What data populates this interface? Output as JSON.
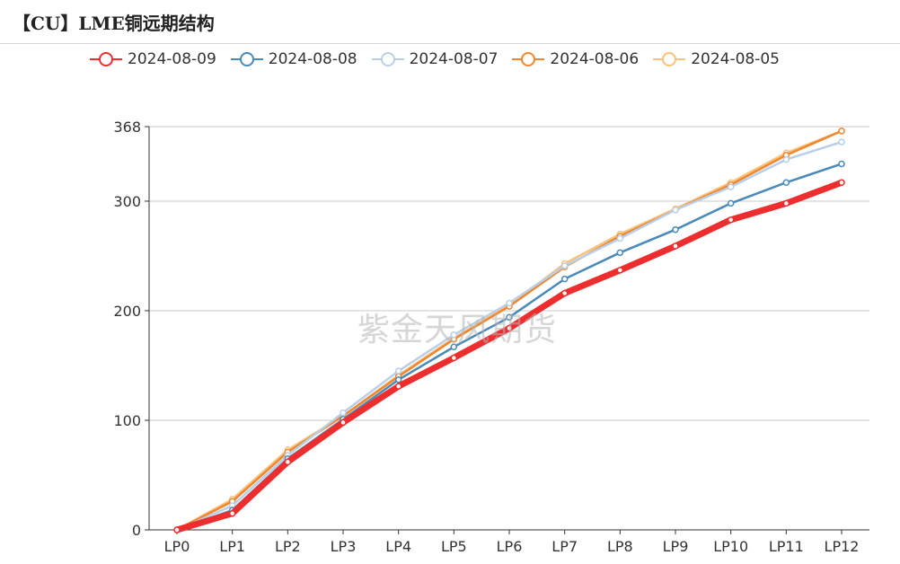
{
  "header": {
    "title": "【CU】LME铜远期结构"
  },
  "watermark": "紫金天风期货",
  "chart_data": {
    "type": "line",
    "title": "【CU】LME铜远期结构",
    "categories": [
      "LP0",
      "LP1",
      "LP2",
      "LP3",
      "LP4",
      "LP5",
      "LP6",
      "LP7",
      "LP8",
      "LP9",
      "LP10",
      "LP11",
      "LP12"
    ],
    "ylim": [
      0,
      368
    ],
    "yticks": [
      0,
      100,
      200,
      300,
      368
    ],
    "grid": true,
    "legend_position": "top",
    "series": [
      {
        "name": "2024-08-09",
        "color": "#ee2e2e",
        "emphasis": true,
        "values": [
          0,
          15,
          62,
          98,
          131,
          157,
          184,
          216,
          237,
          259,
          283,
          298,
          317
        ]
      },
      {
        "name": "2024-08-08",
        "color": "#4a8ab9",
        "values": [
          0,
          18,
          65,
          101,
          137,
          167,
          194,
          229,
          253,
          274,
          298,
          317,
          334
        ]
      },
      {
        "name": "2024-08-07",
        "color": "#b9cfe8",
        "values": [
          0,
          22,
          68,
          107,
          145,
          178,
          207,
          241,
          266,
          292,
          313,
          338,
          354
        ]
      },
      {
        "name": "2024-08-06",
        "color": "#f0862d",
        "values": [
          0,
          26,
          71,
          104,
          140,
          174,
          204,
          240,
          268,
          292,
          315,
          342,
          364
        ]
      },
      {
        "name": "2024-08-05",
        "color": "#f9c17c",
        "values": [
          0,
          28,
          73,
          104,
          141,
          175,
          205,
          243,
          270,
          293,
          317,
          344,
          364
        ]
      }
    ]
  }
}
